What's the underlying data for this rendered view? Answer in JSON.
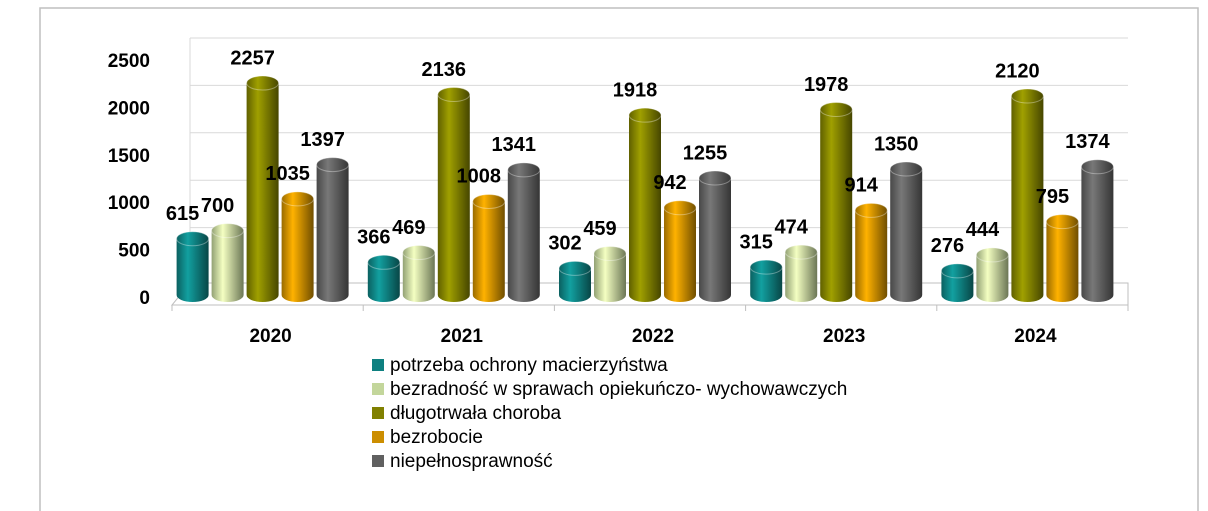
{
  "chart_data": {
    "type": "bar3d",
    "categories": [
      "2020",
      "2021",
      "2022",
      "2023",
      "2024"
    ],
    "series": [
      {
        "name": "potrzeba ochrony macierzyństwa",
        "color": "#0e8080",
        "values": [
          615,
          366,
          302,
          315,
          276
        ]
      },
      {
        "name": "bezradność w sprawach opiekuńczo- wychowawczych",
        "color": "#c3d69b",
        "values": [
          700,
          469,
          459,
          474,
          444
        ]
      },
      {
        "name": "długotrwała choroba",
        "color": "#808000",
        "values": [
          2257,
          2136,
          1918,
          1978,
          2120
        ]
      },
      {
        "name": "bezrobocie",
        "color": "#cc8e00",
        "values": [
          1035,
          1008,
          942,
          914,
          795
        ]
      },
      {
        "name": "niepełnosprawność",
        "color": "#606060",
        "values": [
          1397,
          1341,
          1255,
          1350,
          1374
        ]
      }
    ],
    "ylim": [
      0,
      2500
    ],
    "yticks": [
      0,
      500,
      1000,
      1500,
      2000,
      2500
    ],
    "grid": true,
    "legend": "bottom"
  }
}
